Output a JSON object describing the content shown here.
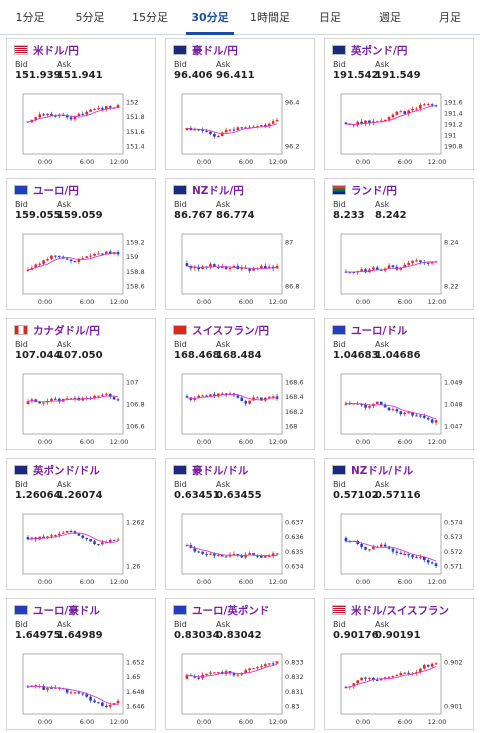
{
  "tabs": [
    {
      "label": "1分足",
      "active": false
    },
    {
      "label": "5分足",
      "active": false
    },
    {
      "label": "15分足",
      "active": false
    },
    {
      "label": "30分足",
      "active": true
    },
    {
      "label": "1時間足",
      "active": false
    },
    {
      "label": "日足",
      "active": false
    },
    {
      "label": "週足",
      "active": false
    },
    {
      "label": "月足",
      "active": false
    }
  ],
  "labels": {
    "bid": "Bid",
    "ask": "Ask"
  },
  "x_ticks": [
    "0:00",
    "6:00",
    "12:00"
  ],
  "colors": {
    "up": "#e8222a",
    "down": "#1f3fbd",
    "ma": "#d23ad8",
    "active_tab": "#1a4fa0",
    "pair_text": "#7a1fa0"
  },
  "cards": [
    {
      "pair": "米ドル/円",
      "flag": "us-jp-flag",
      "bid": "151.939",
      "ask": "151.941",
      "y_ticks": [
        "152",
        "151.8",
        "151.6",
        "151.4"
      ]
    },
    {
      "pair": "豪ドル/円",
      "flag": "au-jp-flag",
      "bid": "96.406",
      "ask": "96.411",
      "y_ticks": [
        "96.4",
        "96.2"
      ]
    },
    {
      "pair": "英ポンド/円",
      "flag": "gb-jp-flag",
      "bid": "191.542",
      "ask": "191.549",
      "y_ticks": [
        "191.6",
        "191.4",
        "191.2",
        "191",
        "190.8"
      ]
    },
    {
      "pair": "ユーロ/円",
      "flag": "eu-jp-flag",
      "bid": "159.055",
      "ask": "159.059",
      "y_ticks": [
        "159.2",
        "159",
        "158.8",
        "158.6"
      ]
    },
    {
      "pair": "NZドル/円",
      "flag": "nz-jp-flag",
      "bid": "86.767",
      "ask": "86.774",
      "y_ticks": [
        "87",
        "86.8"
      ]
    },
    {
      "pair": "ランド/円",
      "flag": "za-jp-flag",
      "bid": "8.233",
      "ask": "8.242",
      "y_ticks": [
        "8.24",
        "8.22"
      ]
    },
    {
      "pair": "カナダドル/円",
      "flag": "ca-jp-flag",
      "bid": "107.044",
      "ask": "107.050",
      "y_ticks": [
        "107",
        "106.8",
        "106.6"
      ]
    },
    {
      "pair": "スイスフラン/円",
      "flag": "ch-jp-flag",
      "bid": "168.468",
      "ask": "168.484",
      "y_ticks": [
        "168.6",
        "168.4",
        "168.2",
        "168"
      ]
    },
    {
      "pair": "ユーロ/ドル",
      "flag": "eu-us-flag",
      "bid": "1.04683",
      "ask": "1.04686",
      "y_ticks": [
        "1.049",
        "1.048",
        "1.047"
      ]
    },
    {
      "pair": "英ポンド/ドル",
      "flag": "gb-us-flag",
      "bid": "1.26064",
      "ask": "1.26074",
      "y_ticks": [
        "1.262",
        "1.26"
      ]
    },
    {
      "pair": "豪ドル/ドル",
      "flag": "au-us-flag",
      "bid": "0.63451",
      "ask": "0.63455",
      "y_ticks": [
        "0.637",
        "0.636",
        "0.635",
        "0.634"
      ]
    },
    {
      "pair": "NZドル/ドル",
      "flag": "nz-us-flag",
      "bid": "0.57102",
      "ask": "0.57116",
      "y_ticks": [
        "0.574",
        "0.573",
        "0.572",
        "0.571"
      ]
    },
    {
      "pair": "ユーロ/豪ドル",
      "flag": "eu-au-flag",
      "bid": "1.64975",
      "ask": "1.64989",
      "y_ticks": [
        "1.652",
        "1.65",
        "1.648",
        "1.646"
      ]
    },
    {
      "pair": "ユーロ/英ポンド",
      "flag": "eu-gb-flag",
      "bid": "0.83034",
      "ask": "0.83042",
      "y_ticks": [
        "0.833",
        "0.832",
        "0.831",
        "0.83"
      ]
    },
    {
      "pair": "米ドル/スイスフラン",
      "flag": "us-ch-flag",
      "bid": "0.90176",
      "ask": "0.90191",
      "y_ticks": [
        "0.902",
        "0.901"
      ]
    }
  ]
}
